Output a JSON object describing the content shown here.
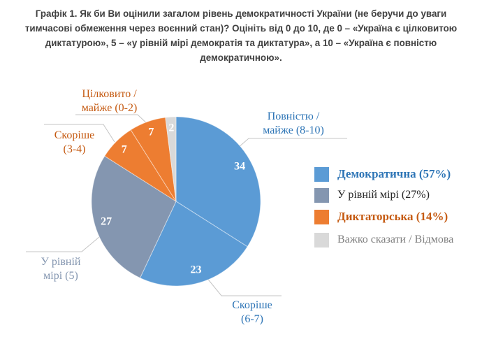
{
  "title_lines": [
    "Графік 1. Як би Ви оцінили загалом рівень демократичності України (не беручи до уваги",
    "тимчасові обмеження через воєнний стан)? Оцініть від 0 до 10, де 0 – «Україна є цілковитою",
    "диктатурою», 5 – «у рівній мірі демократія та диктатура», а 10 – «Україна є повністю",
    "демократичною»."
  ],
  "chart_data": {
    "type": "pie",
    "title": "Графік 1. Як би Ви оцінили загалом рівень демократичності України (не беручи до уваги тимчасові обмеження через воєнний стан)? Оцініть від 0 до 10, де 0 – «Україна є цілковитою диктатурою», 5 – «у рівній мірі демократія та диктатура», а 10 – «Україна є повністю демократичною».",
    "units": "percent of respondents",
    "start_angle_deg": 0,
    "direction": "clockwise",
    "slices": [
      {
        "label": "Повністю / майже (8-10)",
        "value": 34,
        "color": "#5B9BD5",
        "group": "Демократична"
      },
      {
        "label": "Скоріше (6-7)",
        "value": 23,
        "color": "#5B9BD5",
        "group": "Демократична"
      },
      {
        "label": "У рівній мірі (5)",
        "value": 27,
        "color": "#8496B0",
        "group": "У рівній мірі"
      },
      {
        "label": "Скоріше (3-4)",
        "value": 7,
        "color": "#ED7D31",
        "group": "Диктаторська"
      },
      {
        "label": "Цілковито / майже (0-2)",
        "value": 7,
        "color": "#ED7D31",
        "group": "Диктаторська"
      },
      {
        "label": "Важко сказати / Відмова",
        "value": 2,
        "color": "#D9D9D9",
        "group": "Важко сказати / Відмова"
      }
    ],
    "callouts": [
      {
        "line1": "Цілковито /",
        "line2": "майже (0-2)",
        "color": "#C55A11"
      },
      {
        "line1": "Скоріше",
        "line2": "(3-4)",
        "color": "#C55A11"
      },
      {
        "line1": "Повністю /",
        "line2": "майже (8-10)",
        "color": "#2E75B6"
      },
      {
        "line1": "У рівній",
        "line2": "мірі (5)",
        "color": "#8496B0"
      },
      {
        "line1": "Скоріше",
        "line2": "(6-7)",
        "color": "#2E75B6"
      }
    ],
    "legend": [
      {
        "label": "Демократична (57%)",
        "color": "#5B9BD5",
        "text_color": "#2E75B6",
        "bold": true
      },
      {
        "label": "У рівній мірі (27%)",
        "color": "#8496B0",
        "text_color": "#262626",
        "bold": false
      },
      {
        "label": "Диктаторська (14%)",
        "color": "#ED7D31",
        "text_color": "#C55A11",
        "bold": true
      },
      {
        "label": "Важко сказати / Відмова",
        "color": "#D9D9D9",
        "text_color": "#808080",
        "bold": false
      }
    ],
    "legend_position": "right"
  }
}
